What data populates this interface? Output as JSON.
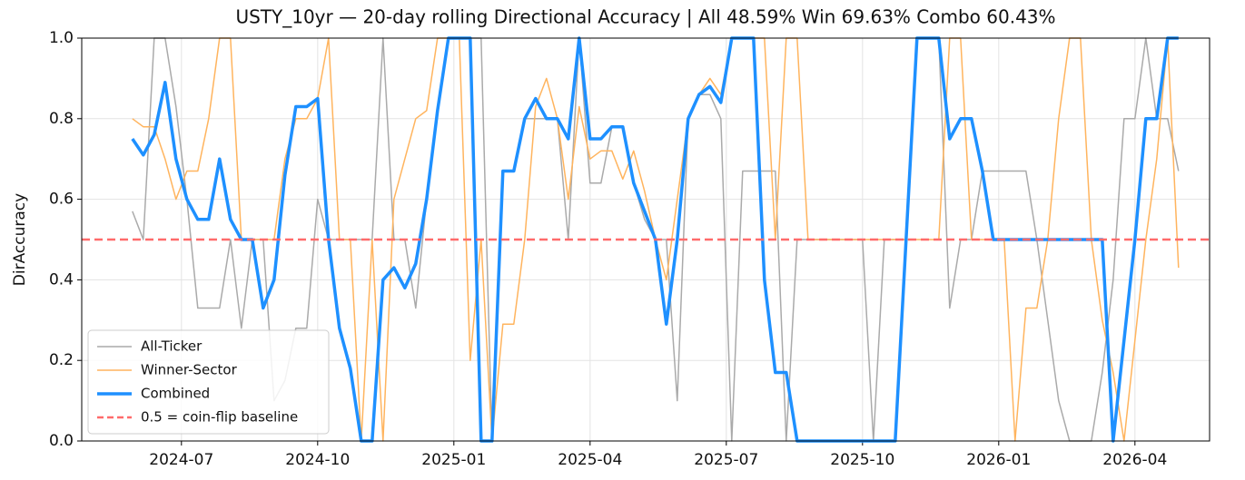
{
  "chart_data": {
    "type": "line",
    "title": "USTY_10yr — 20-day rolling Directional Accuracy  |  All 48.59%  Win 69.63%  Combo 60.43%",
    "y_label": "DirAccuracy",
    "x": [
      2024.41,
      2024.43,
      2024.45,
      2024.47,
      2024.49,
      2024.51,
      2024.53,
      2024.55,
      2024.57,
      2024.59,
      2024.61,
      2024.63,
      2024.65,
      2024.67,
      2024.69,
      2024.71,
      2024.73,
      2024.75,
      2024.77,
      2024.79,
      2024.81,
      2024.83,
      2024.85,
      2024.87,
      2024.89,
      2024.91,
      2024.93,
      2024.95,
      2024.97,
      2024.99,
      2025.01,
      2025.03,
      2025.05,
      2025.07,
      2025.09,
      2025.11,
      2025.13,
      2025.15,
      2025.17,
      2025.19,
      2025.21,
      2025.23,
      2025.25,
      2025.27,
      2025.29,
      2025.31,
      2025.33,
      2025.35,
      2025.37,
      2025.39,
      2025.41,
      2025.43,
      2025.45,
      2025.47,
      2025.49,
      2025.51,
      2025.53,
      2025.55,
      2025.57,
      2025.59,
      2025.61,
      2025.63,
      2025.65,
      2025.67,
      2025.69,
      2025.71,
      2025.73,
      2025.75,
      2025.77,
      2025.79,
      2025.81,
      2025.83,
      2025.85,
      2025.87,
      2025.89,
      2025.91,
      2025.93,
      2025.95,
      2025.97,
      2025.99,
      2026.01,
      2026.03,
      2026.05,
      2026.07,
      2026.09,
      2026.11,
      2026.13,
      2026.15,
      2026.17,
      2026.19,
      2026.21,
      2026.23,
      2026.25,
      2026.27,
      2026.29,
      2026.31,
      2026.33
    ],
    "series": [
      {
        "name": "All-Ticker",
        "color": "#aaaaaa",
        "width": 1.5,
        "values": [
          0.57,
          0.5,
          1.0,
          1.0,
          0.83,
          0.6,
          0.33,
          0.33,
          0.33,
          0.5,
          0.28,
          0.5,
          0.5,
          0.1,
          0.15,
          0.28,
          0.28,
          0.6,
          0.5,
          0.5,
          0.5,
          0.5,
          0.5,
          1.0,
          0.5,
          0.5,
          0.33,
          0.6,
          0.82,
          1.0,
          1.0,
          1.0,
          1.0,
          0.0,
          0.67,
          0.67,
          0.8,
          0.8,
          0.8,
          0.8,
          0.5,
          1.0,
          0.64,
          0.64,
          0.78,
          0.78,
          0.64,
          0.55,
          0.5,
          0.5,
          0.1,
          0.8,
          0.86,
          0.86,
          0.8,
          0.0,
          0.67,
          0.67,
          0.67,
          0.67,
          0.0,
          0.5,
          0.5,
          0.5,
          0.5,
          0.5,
          0.5,
          0.5,
          0.0,
          0.5,
          0.5,
          0.5,
          1.0,
          1.0,
          1.0,
          0.33,
          0.5,
          0.5,
          0.67,
          0.67,
          0.67,
          0.67,
          0.67,
          0.5,
          0.3,
          0.1,
          0.0,
          0.0,
          0.0,
          0.17,
          0.4,
          0.8,
          0.8,
          1.0,
          0.8,
          0.8,
          0.67
        ]
      },
      {
        "name": "Winner-Sector",
        "color": "#ffb45e",
        "width": 1.5,
        "values": [
          0.8,
          0.78,
          0.78,
          0.7,
          0.6,
          0.67,
          0.67,
          0.8,
          1.0,
          1.0,
          0.5,
          0.5,
          0.5,
          0.5,
          0.7,
          0.8,
          0.8,
          0.85,
          1.0,
          0.5,
          0.5,
          0.0,
          0.5,
          0.0,
          0.6,
          0.7,
          0.8,
          0.82,
          1.0,
          1.0,
          1.0,
          0.2,
          0.5,
          0.0,
          0.29,
          0.29,
          0.5,
          0.83,
          0.9,
          0.8,
          0.6,
          0.83,
          0.7,
          0.72,
          0.72,
          0.65,
          0.72,
          0.62,
          0.5,
          0.4,
          0.6,
          0.8,
          0.86,
          0.9,
          0.86,
          1.0,
          1.0,
          1.0,
          1.0,
          0.5,
          1.0,
          1.0,
          0.5,
          0.5,
          0.5,
          0.5,
          0.5,
          0.5,
          0.5,
          0.5,
          0.5,
          0.5,
          0.5,
          0.5,
          0.5,
          1.0,
          1.0,
          0.5,
          0.5,
          0.5,
          0.5,
          0.0,
          0.33,
          0.33,
          0.5,
          0.8,
          1.0,
          1.0,
          0.5,
          0.3,
          0.17,
          0.0,
          0.25,
          0.5,
          0.7,
          1.0,
          0.43
        ]
      },
      {
        "name": "Combined",
        "color": "#1e90ff",
        "width": 3.5,
        "values": [
          0.75,
          0.71,
          0.76,
          0.89,
          0.7,
          0.6,
          0.55,
          0.55,
          0.7,
          0.55,
          0.5,
          0.5,
          0.33,
          0.4,
          0.66,
          0.83,
          0.83,
          0.85,
          0.5,
          0.28,
          0.18,
          0.0,
          0.0,
          0.4,
          0.43,
          0.38,
          0.44,
          0.6,
          0.82,
          1.0,
          1.0,
          1.0,
          0.0,
          0.0,
          0.67,
          0.67,
          0.8,
          0.85,
          0.8,
          0.8,
          0.75,
          1.0,
          0.75,
          0.75,
          0.78,
          0.78,
          0.64,
          0.57,
          0.5,
          0.29,
          0.5,
          0.8,
          0.86,
          0.88,
          0.84,
          1.0,
          1.0,
          1.0,
          0.4,
          0.17,
          0.17,
          0.0,
          0.0,
          0.0,
          0.0,
          0.0,
          0.0,
          0.0,
          0.0,
          0.0,
          0.0,
          0.5,
          1.0,
          1.0,
          1.0,
          0.75,
          0.8,
          0.8,
          0.67,
          0.5,
          0.5,
          0.5,
          0.5,
          0.5,
          0.5,
          0.5,
          0.5,
          0.5,
          0.5,
          0.5,
          0.0,
          0.25,
          0.5,
          0.8,
          0.8,
          1.0,
          1.0
        ]
      }
    ],
    "reference_line": {
      "value": 0.5,
      "label": "0.5 = coin-flip baseline",
      "color": "#ff6b6b"
    },
    "xlim": [
      2024.317,
      2026.387
    ],
    "xticks": [
      {
        "value": 2024.5,
        "label": "2024-07"
      },
      {
        "value": 2024.75,
        "label": "2024-10"
      },
      {
        "value": 2025.0,
        "label": "2025-01"
      },
      {
        "value": 2025.25,
        "label": "2025-04"
      },
      {
        "value": 2025.5,
        "label": "2025-07"
      },
      {
        "value": 2025.75,
        "label": "2025-10"
      },
      {
        "value": 2026.0,
        "label": "2026-01"
      },
      {
        "value": 2026.25,
        "label": "2026-04"
      }
    ],
    "ylim": [
      0,
      1
    ],
    "yticks": [
      {
        "value": 0,
        "label": "0.0"
      },
      0.2,
      0.4,
      0.6,
      0.8,
      {
        "value": 1,
        "label": "1.0"
      }
    ],
    "grid": true,
    "legend": "lower left"
  }
}
